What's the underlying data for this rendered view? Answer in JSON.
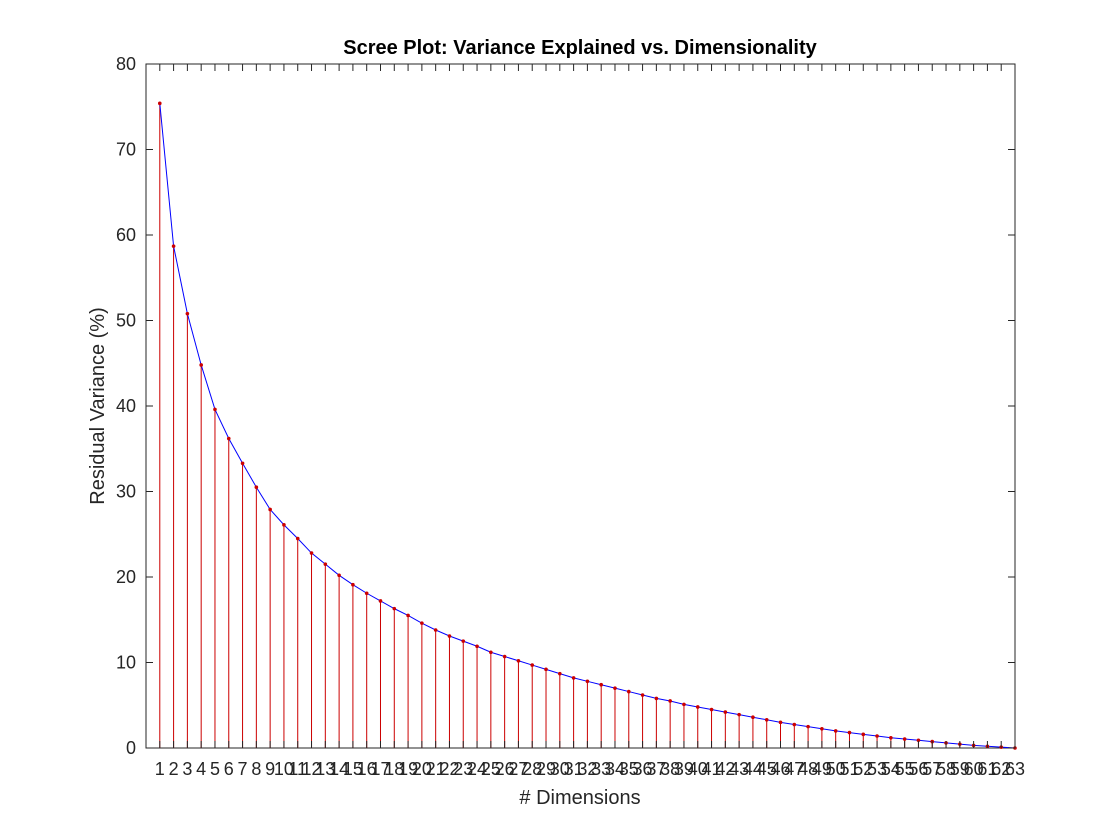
{
  "chart_data": {
    "type": "line",
    "title": "Scree Plot: Variance Explained vs. Dimensionality",
    "xlabel": "# Dimensions",
    "ylabel": "Residual Variance (%)",
    "xlim": [
      0,
      63
    ],
    "ylim": [
      0,
      80
    ],
    "yticks": [
      0,
      10,
      20,
      30,
      40,
      50,
      60,
      70,
      80
    ],
    "x": [
      1,
      2,
      3,
      4,
      5,
      6,
      7,
      8,
      9,
      10,
      11,
      12,
      13,
      14,
      15,
      16,
      17,
      18,
      19,
      20,
      21,
      22,
      23,
      24,
      25,
      26,
      27,
      28,
      29,
      30,
      31,
      32,
      33,
      34,
      35,
      36,
      37,
      38,
      39,
      40,
      41,
      42,
      43,
      44,
      45,
      46,
      47,
      48,
      49,
      50,
      51,
      52,
      53,
      54,
      55,
      56,
      57,
      58,
      59,
      60,
      61,
      62,
      63
    ],
    "series": [
      {
        "values": [
          75.4,
          58.7,
          50.8,
          44.8,
          39.6,
          36.2,
          33.3,
          30.5,
          27.9,
          26.1,
          24.5,
          22.8,
          21.5,
          20.2,
          19.1,
          18.1,
          17.2,
          16.3,
          15.5,
          14.6,
          13.8,
          13.1,
          12.5,
          11.9,
          11.2,
          10.7,
          10.2,
          9.7,
          9.2,
          8.7,
          8.2,
          7.8,
          7.4,
          7.0,
          6.6,
          6.2,
          5.8,
          5.5,
          5.1,
          4.8,
          4.5,
          4.2,
          3.9,
          3.6,
          3.3,
          3.0,
          2.75,
          2.5,
          2.25,
          2.0,
          1.8,
          1.6,
          1.4,
          1.2,
          1.05,
          0.9,
          0.75,
          0.6,
          0.45,
          0.3,
          0.2,
          0.1,
          0.0
        ]
      }
    ],
    "colors": {
      "line": "#0000ff",
      "stem": "#cc0000",
      "marker": "#cc0000",
      "axis": "#262626"
    },
    "grid": false,
    "box": true
  }
}
